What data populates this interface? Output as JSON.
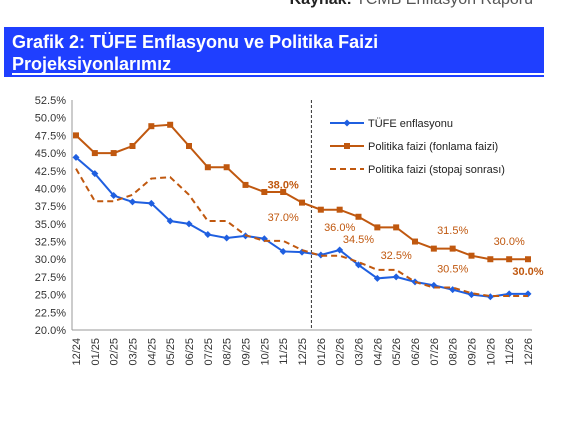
{
  "source": {
    "label": "Kaynak:",
    "text": "TCMB Enflasyon Raporu"
  },
  "title": "Grafik 2: TÜFE Enflasyonu ve Politika Faizi Projeksiyonlarımız",
  "colors": {
    "banner": "#1f3fff",
    "tufe": "#1f5fe0",
    "policy": "#c0580f",
    "annotation": "#c0580f"
  },
  "chart_data": {
    "type": "line",
    "categories": [
      "12/24",
      "01/25",
      "02/25",
      "03/25",
      "04/25",
      "05/25",
      "06/25",
      "07/25",
      "08/25",
      "09/25",
      "10/25",
      "11/25",
      "12/25",
      "01/26",
      "02/26",
      "03/26",
      "04/26",
      "05/26",
      "06/26",
      "07/26",
      "08/26",
      "09/26",
      "10/26",
      "11/26",
      "12/26"
    ],
    "ylim": [
      20.0,
      52.5
    ],
    "yticks": [
      "20.0%",
      "22.5%",
      "25.0%",
      "27.5%",
      "30.0%",
      "32.5%",
      "35.0%",
      "37.5%",
      "40.0%",
      "42.5%",
      "45.0%",
      "47.5%",
      "50.0%",
      "52.5%"
    ],
    "series": [
      {
        "name": "TÜFE enflasyonu",
        "style": "solid-diamond",
        "color": "#1f5fe0",
        "values": [
          44.4,
          42.1,
          39.0,
          38.1,
          37.9,
          35.4,
          35.0,
          33.5,
          33.0,
          33.3,
          32.9,
          31.1,
          31.0,
          30.6,
          31.3,
          29.2,
          27.3,
          27.5,
          26.8,
          26.3,
          25.7,
          25.0,
          24.7,
          25.1,
          25.1
        ]
      },
      {
        "name": "Politika faizi (fonlama faizi)",
        "style": "solid-square",
        "color": "#c0580f",
        "values": [
          47.5,
          45.0,
          45.0,
          46.0,
          48.8,
          49.0,
          46.0,
          43.0,
          43.0,
          40.5,
          39.5,
          39.5,
          38.0,
          37.0,
          37.0,
          36.0,
          34.5,
          34.5,
          32.5,
          31.5,
          31.5,
          30.5,
          30.0,
          30.0,
          30.0
        ]
      },
      {
        "name": "Politika faizi (stopaj sonrası)",
        "style": "dashed",
        "color": "#c0580f",
        "values": [
          42.8,
          38.2,
          38.2,
          39.1,
          41.4,
          41.6,
          39.1,
          35.4,
          35.4,
          33.4,
          32.6,
          32.6,
          31.3,
          30.5,
          30.5,
          29.6,
          28.5,
          28.5,
          26.8,
          26.0,
          26.0,
          25.2,
          24.8,
          24.8,
          24.8
        ]
      }
    ],
    "divider_after": "12/25",
    "annotations": [
      {
        "text": "38.0%",
        "x": "11/25",
        "y": 40.0,
        "bold": true
      },
      {
        "text": "37.0%",
        "x": "11/25",
        "y": 35.4,
        "bold": false
      },
      {
        "text": "36.0%",
        "x": "02/26",
        "y": 34.0,
        "bold": false
      },
      {
        "text": "34.5%",
        "x": "03/26",
        "y": 32.3,
        "bold": false
      },
      {
        "text": "32.5%",
        "x": "05/26",
        "y": 30.0,
        "bold": false
      },
      {
        "text": "31.5%",
        "x": "08/26",
        "y": 33.6,
        "bold": false
      },
      {
        "text": "30.5%",
        "x": "08/26",
        "y": 28.1,
        "bold": false
      },
      {
        "text": "30.0%",
        "x": "11/26",
        "y": 32.0,
        "bold": false
      },
      {
        "text": "30.0%",
        "x": "12/26",
        "y": 27.8,
        "bold": true
      }
    ],
    "legend": "top-right",
    "grid": false
  }
}
